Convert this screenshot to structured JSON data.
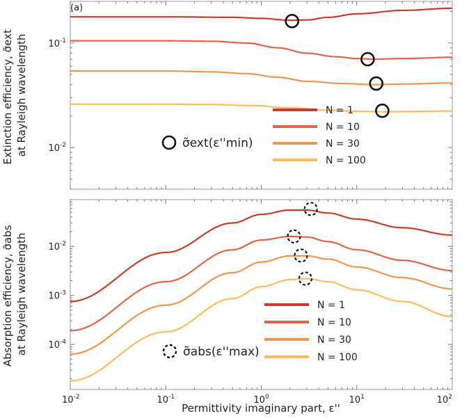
{
  "chart_data": [
    {
      "type": "line",
      "panel_label": "(a)",
      "ylabel_lines": [
        "Extinction efficiency, σ̃ext",
        "at Rayleigh wavelength"
      ],
      "xscale": "log",
      "yscale": "log",
      "xlim": [
        0.01,
        100
      ],
      "ylim": [
        0.004,
        0.25
      ],
      "yticks": [
        {
          "value": 0.1,
          "base": "10",
          "exp": "-1"
        },
        {
          "value": 0.01,
          "base": "10",
          "exp": "-2"
        }
      ],
      "series": [
        {
          "name": "N = 1",
          "color": "#c63c2d",
          "points": [
            [
              0.01,
              0.178
            ],
            [
              0.1,
              0.178
            ],
            [
              0.5,
              0.176
            ],
            [
              1,
              0.172
            ],
            [
              2,
              0.165
            ],
            [
              3,
              0.166
            ],
            [
              5,
              0.176
            ],
            [
              10,
              0.19
            ],
            [
              30,
              0.205
            ],
            [
              100,
              0.215
            ]
          ]
        },
        {
          "name": "N = 10",
          "color": "#e2624a",
          "points": [
            [
              0.01,
              0.105
            ],
            [
              0.1,
              0.105
            ],
            [
              0.3,
              0.104
            ],
            [
              0.7,
              0.1
            ],
            [
              1.5,
              0.09
            ],
            [
              3,
              0.08
            ],
            [
              6,
              0.074
            ],
            [
              10,
              0.071
            ],
            [
              15,
              0.07
            ],
            [
              30,
              0.071
            ],
            [
              100,
              0.073
            ]
          ]
        },
        {
          "name": "N = 30",
          "color": "#f0954f",
          "points": [
            [
              0.01,
              0.054
            ],
            [
              0.1,
              0.054
            ],
            [
              0.3,
              0.053
            ],
            [
              0.7,
              0.051
            ],
            [
              1.5,
              0.047
            ],
            [
              3,
              0.043
            ],
            [
              7,
              0.041
            ],
            [
              15,
              0.04
            ],
            [
              30,
              0.0405
            ],
            [
              100,
              0.0415
            ]
          ]
        },
        {
          "name": "N = 100",
          "color": "#fbbd5c",
          "points": [
            [
              0.01,
              0.026
            ],
            [
              0.1,
              0.026
            ],
            [
              0.3,
              0.0258
            ],
            [
              0.8,
              0.0252
            ],
            [
              2,
              0.024
            ],
            [
              5,
              0.0228
            ],
            [
              10,
              0.0222
            ],
            [
              20,
              0.022
            ],
            [
              50,
              0.0222
            ],
            [
              100,
              0.0224
            ]
          ]
        }
      ],
      "markers": [
        {
          "x": 2.1,
          "y": 0.162
        },
        {
          "x": 13,
          "y": 0.07
        },
        {
          "x": 16,
          "y": 0.041
        },
        {
          "x": 18.5,
          "y": 0.0225
        }
      ],
      "marker_style": "solid",
      "marker_legend_label": "σ̃ext(ε''min)"
    },
    {
      "type": "line",
      "ylabel_lines": [
        "Absorption efficiency, σ̃abs",
        "at Rayleigh wavelength"
      ],
      "xlabel": "Permittivity imaginary part, ε''",
      "xscale": "log",
      "yscale": "log",
      "xlim": [
        0.01,
        100
      ],
      "ylim": [
        1.2e-05,
        0.09
      ],
      "xticks": [
        {
          "value": 0.01,
          "base": "10",
          "exp": "-2"
        },
        {
          "value": 0.1,
          "base": "10",
          "exp": "-1"
        },
        {
          "value": 1,
          "base": "10",
          "exp": "0"
        },
        {
          "value": 10,
          "base": "10",
          "exp": "1"
        },
        {
          "value": 100,
          "base": "10",
          "exp": "2"
        }
      ],
      "yticks": [
        {
          "value": 0.01,
          "base": "10",
          "exp": "-2"
        },
        {
          "value": 0.001,
          "base": "10",
          "exp": "-3"
        },
        {
          "value": 0.0001,
          "base": "10",
          "exp": "-4"
        }
      ],
      "series": [
        {
          "name": "N = 1",
          "color": "#c63c2d",
          "points": [
            [
              0.01,
              0.00075
            ],
            [
              0.1,
              0.0075
            ],
            [
              0.5,
              0.03
            ],
            [
              1,
              0.045
            ],
            [
              2,
              0.055
            ],
            [
              3,
              0.055
            ],
            [
              5,
              0.048
            ],
            [
              10,
              0.036
            ],
            [
              30,
              0.024
            ],
            [
              100,
              0.017
            ]
          ]
        },
        {
          "name": "N = 10",
          "color": "#e2624a",
          "points": [
            [
              0.01,
              0.00019
            ],
            [
              0.1,
              0.0019
            ],
            [
              0.5,
              0.0085
            ],
            [
              1,
              0.0135
            ],
            [
              2,
              0.016
            ],
            [
              3,
              0.0155
            ],
            [
              5,
              0.0125
            ],
            [
              10,
              0.0085
            ],
            [
              30,
              0.0052
            ],
            [
              100,
              0.0032
            ]
          ]
        },
        {
          "name": "N = 30",
          "color": "#f0954f",
          "points": [
            [
              0.01,
              6.3e-05
            ],
            [
              0.1,
              0.00063
            ],
            [
              0.5,
              0.0029
            ],
            [
              1,
              0.0048
            ],
            [
              2,
              0.0064
            ],
            [
              3,
              0.0064
            ],
            [
              5,
              0.0055
            ],
            [
              10,
              0.0038
            ],
            [
              30,
              0.0023
            ],
            [
              100,
              0.00135
            ]
          ]
        },
        {
          "name": "N = 100",
          "color": "#fbbd5c",
          "points": [
            [
              0.01,
              1.8e-05
            ],
            [
              0.1,
              0.00018
            ],
            [
              0.5,
              0.00086
            ],
            [
              1,
              0.0015
            ],
            [
              2,
              0.0021
            ],
            [
              3,
              0.0022
            ],
            [
              5,
              0.0019
            ],
            [
              10,
              0.0013
            ],
            [
              30,
              0.00075
            ],
            [
              100,
              0.00037
            ]
          ]
        }
      ],
      "markers": [
        {
          "x": 3.3,
          "y": 0.058
        },
        {
          "x": 2.2,
          "y": 0.016
        },
        {
          "x": 2.6,
          "y": 0.0065
        },
        {
          "x": 2.9,
          "y": 0.0022
        }
      ],
      "marker_style": "dashed",
      "marker_legend_label": "σ̃abs(ε''max)"
    }
  ]
}
